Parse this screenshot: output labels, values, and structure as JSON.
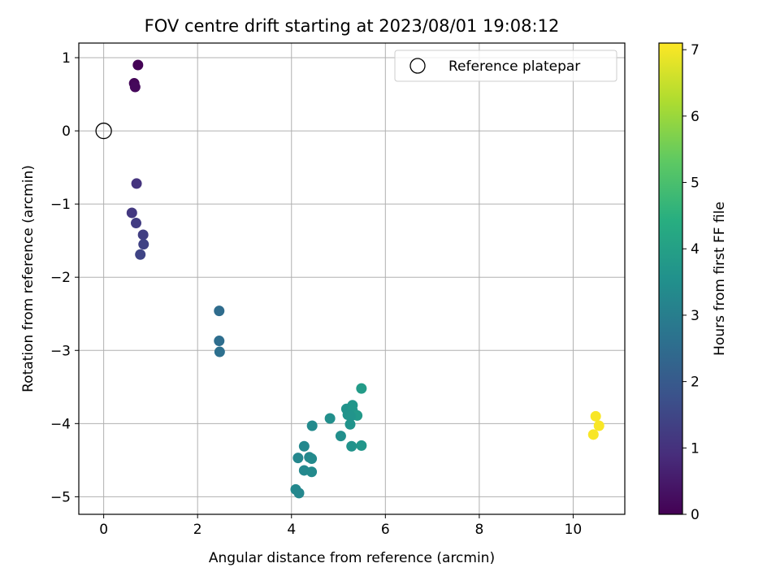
{
  "chart_data": {
    "type": "scatter",
    "title": "FOV centre drift starting at 2023/08/01 19:08:12",
    "xlabel": "Angular distance from reference (arcmin)",
    "ylabel": "Rotation from reference (arcmin)",
    "xlim": [
      -0.53,
      11.1
    ],
    "ylim": [
      -5.24,
      1.2
    ],
    "xticks": [
      0,
      2,
      4,
      6,
      8,
      10
    ],
    "yticks": [
      1,
      0,
      -1,
      -2,
      -3,
      -4,
      -5
    ],
    "xtick_labels": [
      "0",
      "2",
      "4",
      "6",
      "8",
      "10"
    ],
    "ytick_labels": [
      "1",
      "0",
      "−1",
      "−2",
      "−3",
      "−4",
      "−5"
    ],
    "grid": true,
    "legend": {
      "position": "top-right",
      "entries": [
        {
          "label": "Reference platepar",
          "marker": "open-circle",
          "x": 0,
          "y": 0
        }
      ]
    },
    "colorbar": {
      "label": "Hours from first FF file",
      "range": [
        0,
        7.1
      ],
      "ticks": [
        0,
        1,
        2,
        3,
        4,
        5,
        6,
        7
      ],
      "tick_labels": [
        "0",
        "1",
        "2",
        "3",
        "4",
        "5",
        "6",
        "7"
      ],
      "colormap": "viridis"
    },
    "points": [
      {
        "x": 0.73,
        "y": 0.9,
        "c": 0.05
      },
      {
        "x": 0.65,
        "y": 0.65,
        "c": 0.1
      },
      {
        "x": 0.67,
        "y": 0.6,
        "c": 0.15
      },
      {
        "x": 0.7,
        "y": -0.72,
        "c": 1.05
      },
      {
        "x": 0.6,
        "y": -1.12,
        "c": 1.15
      },
      {
        "x": 0.69,
        "y": -1.26,
        "c": 1.25
      },
      {
        "x": 0.84,
        "y": -1.42,
        "c": 1.3
      },
      {
        "x": 0.85,
        "y": -1.55,
        "c": 1.4
      },
      {
        "x": 0.78,
        "y": -1.69,
        "c": 1.45
      },
      {
        "x": 2.46,
        "y": -2.46,
        "c": 2.5
      },
      {
        "x": 2.46,
        "y": -2.87,
        "c": 2.55
      },
      {
        "x": 2.47,
        "y": -3.02,
        "c": 2.6
      },
      {
        "x": 5.49,
        "y": -3.52,
        "c": 3.85
      },
      {
        "x": 5.3,
        "y": -3.75,
        "c": 3.7
      },
      {
        "x": 5.17,
        "y": -3.8,
        "c": 3.6
      },
      {
        "x": 5.3,
        "y": -3.82,
        "c": 3.7
      },
      {
        "x": 5.2,
        "y": -3.88,
        "c": 3.6
      },
      {
        "x": 5.4,
        "y": -3.89,
        "c": 3.8
      },
      {
        "x": 5.26,
        "y": -3.9,
        "c": 3.65
      },
      {
        "x": 4.82,
        "y": -3.93,
        "c": 3.5
      },
      {
        "x": 5.25,
        "y": -4.01,
        "c": 3.6
      },
      {
        "x": 4.44,
        "y": -4.03,
        "c": 3.35
      },
      {
        "x": 5.05,
        "y": -4.17,
        "c": 3.5
      },
      {
        "x": 5.28,
        "y": -4.31,
        "c": 3.6
      },
      {
        "x": 5.49,
        "y": -4.3,
        "c": 3.7
      },
      {
        "x": 4.27,
        "y": -4.31,
        "c": 3.3
      },
      {
        "x": 4.38,
        "y": -4.46,
        "c": 3.3
      },
      {
        "x": 4.43,
        "y": -4.48,
        "c": 3.35
      },
      {
        "x": 4.14,
        "y": -4.47,
        "c": 3.25
      },
      {
        "x": 4.27,
        "y": -4.64,
        "c": 3.3
      },
      {
        "x": 4.43,
        "y": -4.66,
        "c": 3.35
      },
      {
        "x": 4.09,
        "y": -4.9,
        "c": 3.3
      },
      {
        "x": 4.16,
        "y": -4.95,
        "c": 3.25
      },
      {
        "x": 10.48,
        "y": -3.9,
        "c": 7.05
      },
      {
        "x": 10.55,
        "y": -4.03,
        "c": 7.05
      },
      {
        "x": 10.43,
        "y": -4.15,
        "c": 7.05
      }
    ]
  }
}
